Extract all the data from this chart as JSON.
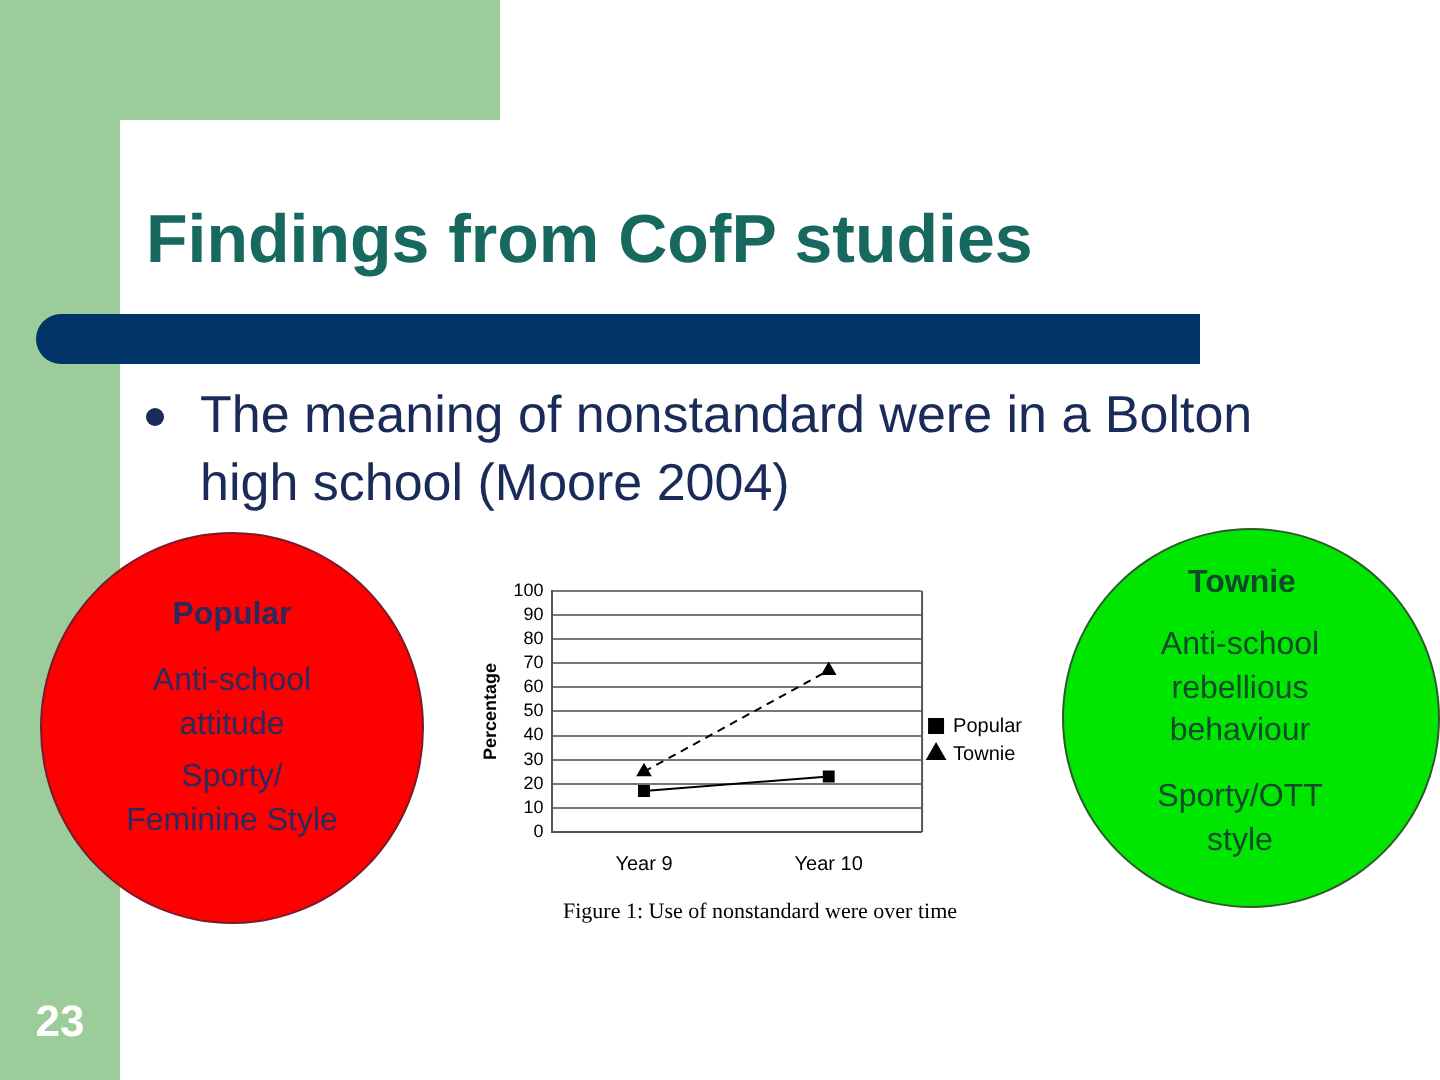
{
  "chart_data": {
    "type": "line",
    "title": "Findings from CofP studies",
    "subtitle": "The meaning of nonstandard were in a Bolton high school (Moore 2004)",
    "ylabel": "Percentage",
    "categories": [
      "Year 9",
      "Year 10"
    ],
    "series": [
      {
        "name": "Popular",
        "color": "#000000",
        "values": [
          17,
          23
        ],
        "marker": "square",
        "line_style": "solid"
      },
      {
        "name": "Townie",
        "color": "#000000",
        "values": [
          25,
          67
        ],
        "marker": "triangle",
        "line_style": "dashed"
      }
    ],
    "ylim": [
      0,
      100
    ],
    "yticks": [
      0,
      10,
      20,
      30,
      40,
      50,
      60,
      70,
      80,
      90,
      100
    ],
    "grid": "y",
    "legend": "right",
    "annotations": [
      "Popular",
      "Anti-school attitude",
      "Sporty/ Feminine Style",
      "Townie",
      "Anti-school rebellious behaviour",
      "Sporty/OTT style",
      "Figure 1: Use of nonstandard were over time",
      "23"
    ]
  }
}
